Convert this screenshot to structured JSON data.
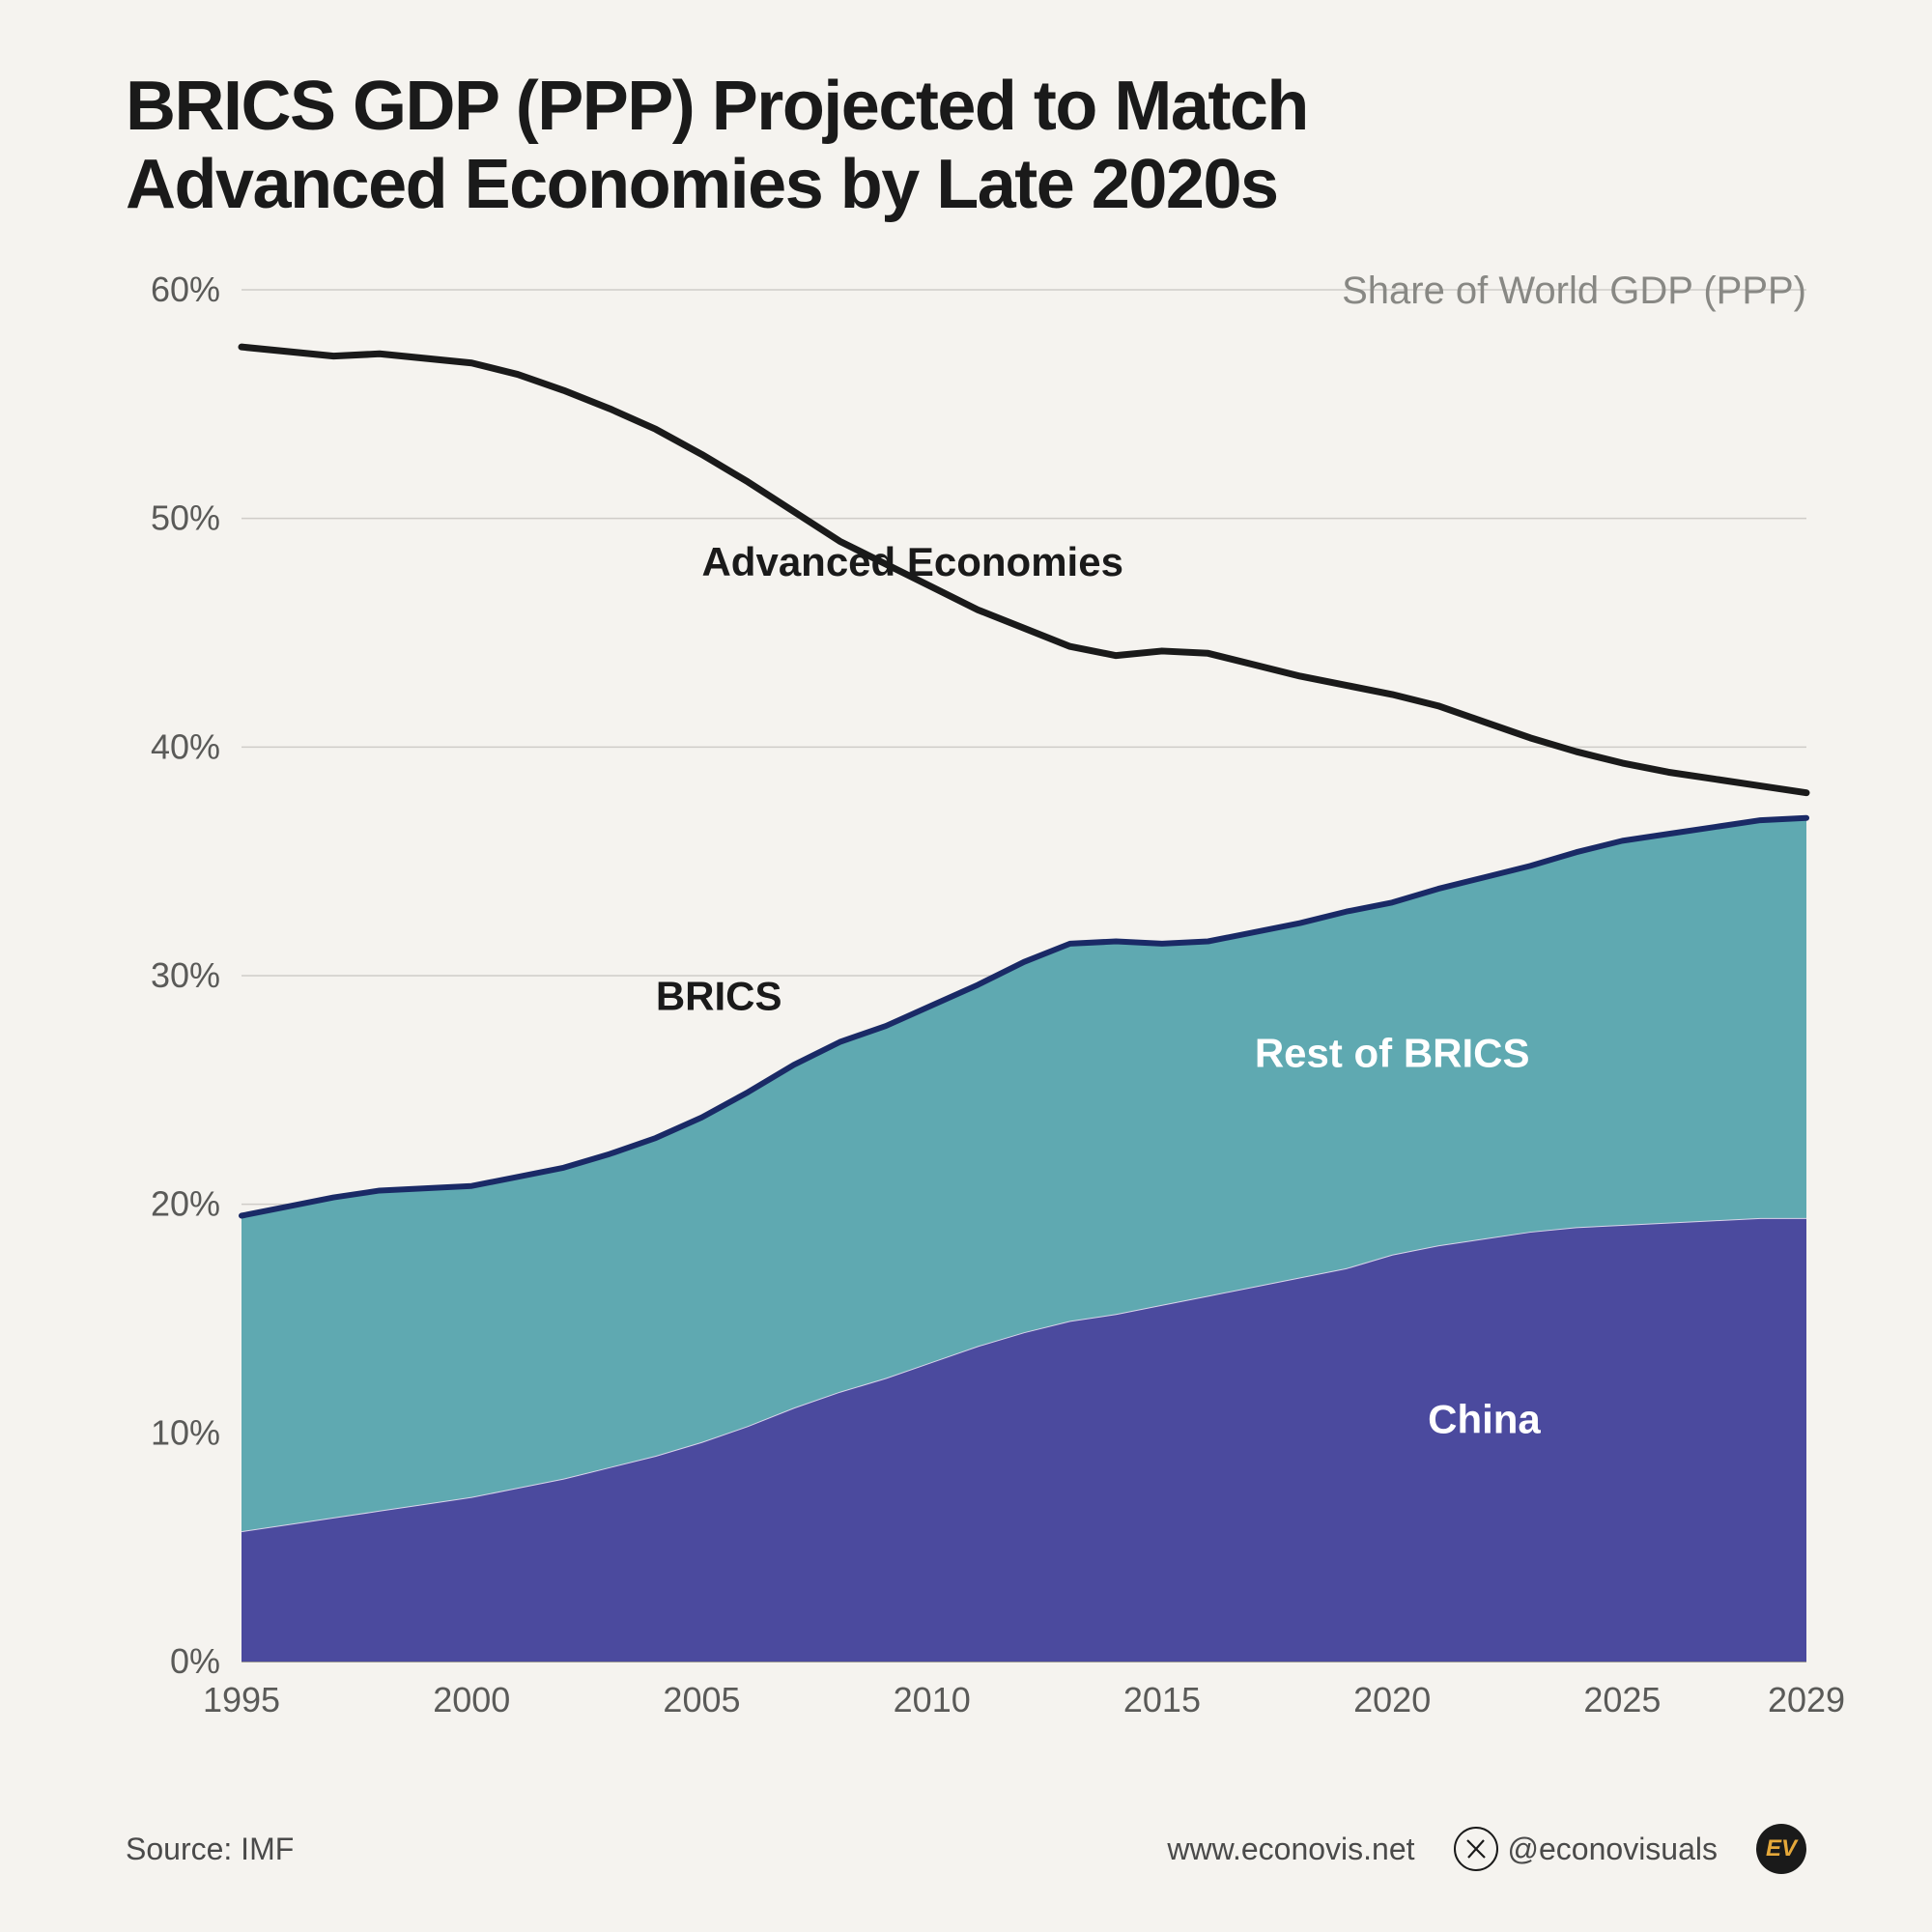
{
  "title_line1": "BRICS GDP (PPP) Projected to Match",
  "title_line2": "Advanced Economies by Late 2020s",
  "subtitle": "Share of World GDP (PPP)",
  "source": "Source: IMF",
  "website": "www.econovis.net",
  "handle": "@econovisuals",
  "logo_text": "EV",
  "chart": {
    "type": "area-and-line",
    "background": "#f5f3ef",
    "grid_color": "#cfcdc8",
    "axis_color": "#9a9894",
    "axis_fontsize": 36,
    "x": {
      "years": [
        1995,
        1996,
        1997,
        1998,
        1999,
        2000,
        2001,
        2002,
        2003,
        2004,
        2005,
        2006,
        2007,
        2008,
        2009,
        2010,
        2011,
        2012,
        2013,
        2014,
        2015,
        2016,
        2017,
        2018,
        2019,
        2020,
        2021,
        2022,
        2023,
        2024,
        2025,
        2026,
        2027,
        2028,
        2029
      ],
      "ticks": [
        1995,
        2000,
        2005,
        2010,
        2015,
        2020,
        2025,
        2029
      ]
    },
    "y": {
      "min": 0,
      "max": 60,
      "ticks": [
        0,
        10,
        20,
        30,
        40,
        50,
        60
      ],
      "format": "%"
    },
    "series": {
      "china": {
        "label": "China",
        "color": "#4b4a9e",
        "text_color": "#ffffff",
        "label_pos": {
          "x": 2022,
          "y": 10
        },
        "values": [
          5.7,
          6.0,
          6.3,
          6.6,
          6.9,
          7.2,
          7.6,
          8.0,
          8.5,
          9.0,
          9.6,
          10.3,
          11.1,
          11.8,
          12.4,
          13.1,
          13.8,
          14.4,
          14.9,
          15.2,
          15.6,
          16.0,
          16.4,
          16.8,
          17.2,
          17.8,
          18.2,
          18.5,
          18.8,
          19.0,
          19.1,
          19.2,
          19.3,
          19.4,
          19.4
        ]
      },
      "rest_of_brics": {
        "label": "Rest of BRICS",
        "color": "#5fa9b1",
        "text_color": "#ffffff",
        "label_pos": {
          "x": 2020,
          "y": 26
        },
        "values": [
          13.8,
          13.9,
          14.0,
          14.0,
          13.8,
          13.6,
          13.6,
          13.6,
          13.7,
          13.9,
          14.2,
          14.6,
          15.0,
          15.3,
          15.4,
          15.6,
          15.8,
          16.2,
          16.5,
          16.3,
          15.8,
          15.5,
          15.5,
          15.5,
          15.6,
          15.4,
          15.6,
          15.8,
          16.0,
          16.4,
          16.8,
          17.0,
          17.2,
          17.4,
          17.5
        ]
      },
      "brics_line": {
        "label": "BRICS",
        "color": "#1a2a66",
        "width": 6,
        "label_pos": {
          "x": 2004,
          "y": 28.5
        }
      },
      "advanced": {
        "label": "Advanced Economies",
        "color": "#1a1a1a",
        "width": 7,
        "label_pos": {
          "x": 2005,
          "y": 47.5
        },
        "values": [
          57.5,
          57.3,
          57.1,
          57.2,
          57.0,
          56.8,
          56.3,
          55.6,
          54.8,
          53.9,
          52.8,
          51.6,
          50.3,
          49.0,
          48.0,
          47.0,
          46.0,
          45.2,
          44.4,
          44.0,
          44.2,
          44.1,
          43.6,
          43.1,
          42.7,
          42.3,
          41.8,
          41.1,
          40.4,
          39.8,
          39.3,
          38.9,
          38.6,
          38.3,
          38.0
        ]
      }
    }
  }
}
